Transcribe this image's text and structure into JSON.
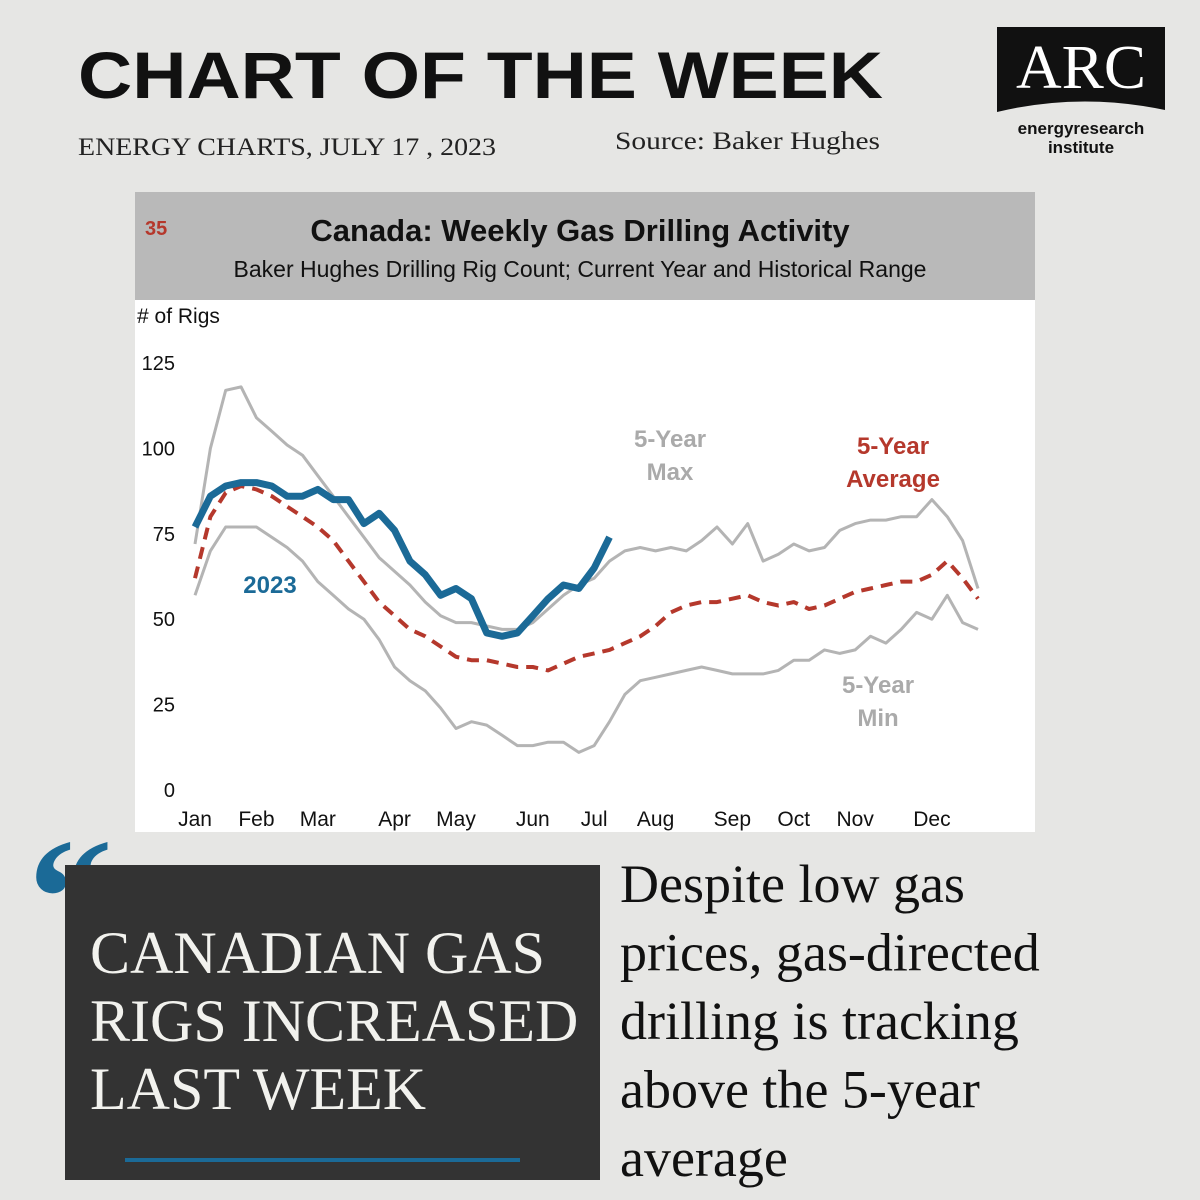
{
  "header": {
    "title": "CHART OF THE WEEK",
    "date": "ENERGY CHARTS, JULY 17 , 2023",
    "source": "Source: Baker Hughes"
  },
  "logo": {
    "name": "ARC",
    "tagline": [
      "energyresearch",
      "institute"
    ]
  },
  "chart_data": {
    "type": "line",
    "number": "35",
    "title": "Canada: Weekly Gas Drilling Activity",
    "subtitle": "Baker Hughes Drilling Rig Count; Current Year and Historical Range",
    "y_label": "# of Rigs",
    "categories": [
      "Jan",
      null,
      null,
      null,
      "Feb",
      null,
      null,
      null,
      "Mar",
      null,
      null,
      null,
      null,
      "Apr",
      null,
      null,
      null,
      "May",
      null,
      null,
      null,
      null,
      "Jun",
      null,
      null,
      null,
      "Jul",
      null,
      null,
      null,
      "Aug",
      null,
      null,
      null,
      null,
      "Sep",
      null,
      null,
      null,
      "Oct",
      null,
      null,
      null,
      "Nov",
      null,
      null,
      null,
      null,
      "Dec",
      null,
      null,
      null
    ],
    "ylim": [
      0,
      125
    ],
    "yticks": [
      0,
      25,
      50,
      75,
      100,
      125
    ],
    "grid": false,
    "series": [
      {
        "name": "5-Year Max",
        "color": "#b4b4b4",
        "dash": false,
        "width": 3,
        "values": [
          72,
          100,
          117,
          118,
          109,
          105,
          101,
          98,
          92,
          86,
          80,
          74,
          68,
          64,
          60,
          55,
          51,
          49,
          49,
          48,
          47,
          47,
          49,
          53,
          57,
          60,
          62,
          67,
          70,
          71,
          70,
          71,
          70,
          73,
          77,
          72,
          78,
          67,
          69,
          72,
          70,
          71,
          76,
          78,
          79,
          79,
          80,
          80,
          85,
          80,
          73,
          59
        ]
      },
      {
        "name": "5-Year Min",
        "color": "#b4b4b4",
        "dash": false,
        "width": 3,
        "values": [
          57,
          70,
          77,
          77,
          77,
          74,
          71,
          67,
          61,
          57,
          53,
          50,
          44,
          36,
          32,
          29,
          24,
          18,
          20,
          19,
          16,
          13,
          13,
          14,
          14,
          11,
          13,
          20,
          28,
          32,
          33,
          34,
          35,
          36,
          35,
          34,
          34,
          34,
          35,
          38,
          38,
          41,
          40,
          41,
          45,
          43,
          47,
          52,
          50,
          57,
          49,
          47
        ]
      },
      {
        "name": "5-Year Average",
        "color": "#b5382c",
        "dash": true,
        "width": 4,
        "values": [
          62,
          80,
          87,
          89,
          88,
          86,
          83,
          80,
          77,
          73,
          67,
          61,
          55,
          51,
          47,
          45,
          42,
          39,
          38,
          38,
          37,
          36,
          36,
          35,
          37,
          39,
          40,
          41,
          43,
          45,
          48,
          52,
          54,
          55,
          55,
          56,
          57,
          55,
          54,
          55,
          53,
          54,
          56,
          58,
          59,
          60,
          61,
          61,
          63,
          67,
          62,
          56
        ]
      },
      {
        "name": "2023",
        "color": "#1b6a97",
        "dash": false,
        "width": 7,
        "values": [
          77,
          86,
          89,
          90,
          90,
          89,
          86,
          86,
          88,
          85,
          85,
          78,
          81,
          76,
          67,
          63,
          57,
          59,
          56,
          46,
          45,
          46,
          51,
          56,
          60,
          59,
          65,
          74,
          null,
          null,
          null,
          null,
          null,
          null,
          null,
          null,
          null,
          null,
          null,
          null,
          null,
          null,
          null,
          null,
          null,
          null,
          null,
          null,
          null,
          null,
          null,
          null
        ]
      }
    ]
  },
  "callout": {
    "quote_mark": "“",
    "headline": [
      "CANADIAN GAS",
      "RIGS INCREASED",
      "LAST WEEK"
    ],
    "body": [
      "Despite low gas",
      "prices, gas-directed",
      "drilling is tracking",
      "above the 5-year",
      "average"
    ]
  }
}
